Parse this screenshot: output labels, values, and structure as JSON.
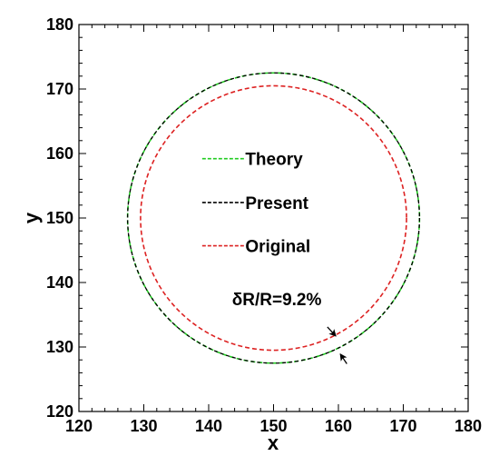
{
  "chart_data": {
    "type": "line",
    "title": "",
    "xlabel": "x",
    "ylabel": "y",
    "xlim": [
      120,
      180
    ],
    "ylim": [
      120,
      180
    ],
    "xticks": [
      120,
      130,
      140,
      150,
      160,
      170,
      180
    ],
    "yticks": [
      120,
      130,
      140,
      150,
      160,
      170,
      180
    ],
    "grid": false,
    "legend_position": "center",
    "series": [
      {
        "name": "Theory",
        "color": "#22cc22",
        "dash": "dashed",
        "shape": "circle",
        "center": [
          150,
          150
        ],
        "radius": 22.5
      },
      {
        "name": "Present",
        "color": "#000000",
        "dash": "dashed",
        "shape": "circle",
        "center": [
          150,
          150
        ],
        "radius": 22.5
      },
      {
        "name": "Original",
        "color": "#dd2222",
        "dash": "dashed",
        "shape": "circle",
        "center": [
          150,
          150
        ],
        "radius": 20.5
      }
    ],
    "annotations": [
      {
        "text": "δR/R=9.2%",
        "x": 150.5,
        "y": 137.5
      }
    ],
    "arrows": [
      {
        "tail": [
          158.3,
          133.1
        ],
        "head": [
          159.6,
          131.7
        ]
      },
      {
        "tail": [
          161.3,
          127.4
        ],
        "head": [
          160.3,
          128.9
        ]
      }
    ]
  }
}
